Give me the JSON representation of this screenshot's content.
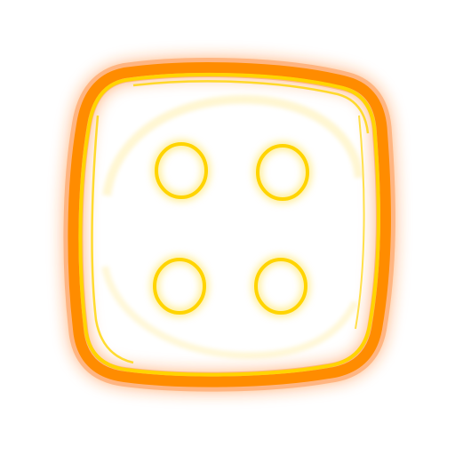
{
  "icon": {
    "name": "dice-four-icon",
    "pip_count": 4,
    "colors": {
      "background": "#ffffff",
      "outer_glow": "#ff7a1a",
      "outline_outer": "#ff8c00",
      "outline_inner": "#ffd400",
      "pip_ring": "#ffd400",
      "pip_glow": "#ffa040",
      "inner_highlight": "#ffe680"
    }
  }
}
